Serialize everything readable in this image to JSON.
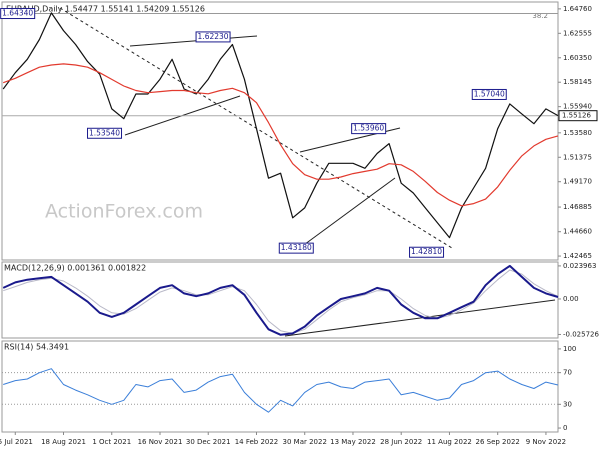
{
  "watermark": "ActionForex.com",
  "chart_data": [
    {
      "type": "line",
      "title": "EURAUD,Daily  1.54477 1.55141 1.54209 1.55126",
      "x": [
        -1,
        0,
        1,
        2,
        3,
        4,
        5,
        6,
        7,
        8,
        9,
        10,
        11,
        12,
        13,
        14,
        15,
        16,
        17,
        18,
        19,
        20,
        21,
        22,
        23,
        24,
        25,
        26,
        27,
        28,
        29,
        30,
        31,
        32,
        33,
        34,
        35,
        36,
        37,
        38,
        39,
        40,
        41,
        42,
        43,
        44,
        45
      ],
      "xlim": [
        -1.1,
        45
      ],
      "ylim": [
        1.4211,
        1.6538
      ],
      "yticks": [
        {
          "value": 1.6476,
          "label": "1.64760"
        },
        1.62555,
        {
          "value": 1.6035,
          "label": "1.60350"
        },
        1.58145,
        {
          "value": 1.5594,
          "label": "1.55940"
        },
        {
          "value": 1.5358,
          "label": "1.53580"
        },
        1.51375,
        {
          "value": 1.4917,
          "label": "1.49170"
        },
        1.46885,
        {
          "value": 1.4466,
          "label": "1.44660"
        },
        1.42465
      ],
      "series": [
        {
          "color": "#111111",
          "values": [
            1.5753,
            1.59,
            1.6021,
            1.62,
            1.644,
            1.628,
            1.6155,
            1.6,
            1.5887,
            1.5574,
            1.5485,
            1.5708,
            1.5708,
            1.5842,
            1.6021,
            1.5753,
            1.5708,
            1.5842,
            1.6021,
            1.6155,
            1.5842,
            1.5395,
            1.4949,
            1.4994,
            1.4592,
            1.4681,
            1.4904,
            1.5083,
            1.5083,
            1.5083,
            1.5038,
            1.5172,
            1.5261,
            1.4904,
            1.4815,
            1.4681,
            1.4547,
            1.4413,
            1.4681,
            1.486,
            1.5038,
            1.5395,
            1.5619,
            1.5529,
            1.544,
            1.5574,
            1.5513
          ]
        },
        {
          "color": "#e23a2e",
          "values": [
            1.581,
            1.585,
            1.59,
            1.595,
            1.597,
            1.598,
            1.597,
            1.595,
            1.59,
            1.584,
            1.578,
            1.574,
            1.572,
            1.573,
            1.574,
            1.574,
            1.572,
            1.571,
            1.574,
            1.576,
            1.572,
            1.563,
            1.545,
            1.525,
            1.508,
            1.498,
            1.494,
            1.494,
            1.496,
            1.499,
            1.501,
            1.503,
            1.508,
            1.507,
            1.501,
            1.492,
            1.482,
            1.475,
            1.47,
            1.472,
            1.476,
            1.487,
            1.502,
            1.515,
            1.524,
            1.53,
            1.533
          ]
        }
      ],
      "annotations": [
        {
          "label": "1.64340",
          "x": 0.2,
          "value": 1.6434
        },
        {
          "label": "1.62230",
          "x": 16.4,
          "value": 1.6223
        },
        {
          "label": "1.53540",
          "x": 7.4,
          "value": 1.5354
        },
        {
          "label": "1.53960",
          "x": 29.3,
          "value": 1.5396
        },
        {
          "label": "1.43180",
          "x": 23.3,
          "value": 1.4318
        },
        {
          "label": "1.42810",
          "x": 34.1,
          "value": 1.4281
        },
        {
          "label": "1.57040",
          "x": 39.3,
          "value": 1.5704
        }
      ],
      "hlines": [
        1.6434
      ],
      "fib_label": "38.2",
      "last_price": 1.55126
    },
    {
      "type": "line",
      "title": "MACD(12,26,9) 0.001361 0.001822",
      "x": [
        -1,
        0,
        1,
        2,
        3,
        4,
        5,
        6,
        7,
        8,
        9,
        10,
        11,
        12,
        13,
        14,
        15,
        16,
        17,
        18,
        19,
        20,
        21,
        22,
        23,
        24,
        25,
        26,
        27,
        28,
        29,
        30,
        31,
        32,
        33,
        34,
        35,
        36,
        37,
        38,
        39,
        40,
        41,
        42,
        43,
        44,
        45
      ],
      "xlim": [
        -1.1,
        45
      ],
      "ylim": [
        -0.0283,
        0.0268
      ],
      "yticks": [
        0.023963,
        {
          "value": 0,
          "label": "0.00"
        },
        -0.025726
      ],
      "series": [
        {
          "color": "#b9b9c8",
          "width": 1,
          "values": [
            0.006,
            0.009,
            0.012,
            0.014,
            0.015,
            0.013,
            0.008,
            0.002,
            -0.005,
            -0.01,
            -0.011,
            -0.007,
            -0.001,
            0.005,
            0.008,
            0.006,
            0.003,
            0.003,
            0.006,
            0.009,
            0.006,
            -0.004,
            -0.016,
            -0.023,
            -0.025,
            -0.022,
            -0.015,
            -0.008,
            -0.002,
            0.001,
            0.003,
            0.006,
            0.006,
            0.0,
            -0.007,
            -0.012,
            -0.014,
            -0.012,
            -0.008,
            -0.003,
            0.006,
            0.014,
            0.021,
            0.018,
            0.011,
            0.006,
            0.0018
          ]
        },
        {
          "color": "#1a1a8c",
          "width": 2,
          "values": [
            0.008,
            0.012,
            0.014,
            0.015,
            0.016,
            0.01,
            0.004,
            -0.002,
            -0.01,
            -0.013,
            -0.01,
            -0.004,
            0.002,
            0.008,
            0.01,
            0.004,
            0.002,
            0.004,
            0.008,
            0.01,
            0.003,
            -0.01,
            -0.022,
            -0.026,
            -0.025,
            -0.02,
            -0.012,
            -0.006,
            0.0,
            0.002,
            0.004,
            0.008,
            0.006,
            -0.004,
            -0.01,
            -0.014,
            -0.014,
            -0.01,
            -0.006,
            -0.002,
            0.01,
            0.018,
            0.024,
            0.016,
            0.008,
            0.004,
            0.0014
          ]
        }
      ]
    },
    {
      "type": "line",
      "title": "RSI(14) 54.3491",
      "x": [
        -1,
        0,
        1,
        2,
        3,
        4,
        5,
        6,
        7,
        8,
        9,
        10,
        11,
        12,
        13,
        14,
        15,
        16,
        17,
        18,
        19,
        20,
        21,
        22,
        23,
        24,
        25,
        26,
        27,
        28,
        29,
        30,
        31,
        32,
        33,
        34,
        35,
        36,
        37,
        38,
        39,
        40,
        41,
        42,
        43,
        44,
        45
      ],
      "xlim": [
        -1.1,
        45
      ],
      "ylim": [
        -5,
        110
      ],
      "yticks": [
        100,
        70,
        30,
        0
      ],
      "reference_lines": [
        70,
        30
      ],
      "xticks": [
        {
          "value": 0,
          "label": "5 Jul 2021"
        },
        {
          "value": 4,
          "label": "18 Aug 2021"
        },
        {
          "value": 8,
          "label": "1 Oct 2021"
        },
        {
          "value": 12,
          "label": "16 Nov 2021"
        },
        {
          "value": 16,
          "label": "30 Dec 2021"
        },
        {
          "value": 20,
          "label": "14 Feb 2022"
        },
        {
          "value": 24,
          "label": "30 Mar 2022"
        },
        {
          "value": 28,
          "label": "13 May 2022"
        },
        {
          "value": 32,
          "label": "28 Jun 2022"
        },
        {
          "value": 36,
          "label": "11 Aug 2022"
        },
        {
          "value": 40,
          "label": "26 Sep 2022"
        },
        {
          "value": 44,
          "label": "9 Nov 2022"
        }
      ],
      "series": [
        {
          "color": "#3b7fd9",
          "width": 1,
          "values": [
            55,
            60,
            62,
            70,
            75,
            55,
            48,
            42,
            35,
            30,
            35,
            55,
            52,
            60,
            62,
            45,
            48,
            58,
            65,
            68,
            45,
            30,
            20,
            35,
            28,
            45,
            55,
            58,
            52,
            50,
            58,
            60,
            62,
            42,
            45,
            40,
            35,
            38,
            55,
            60,
            70,
            72,
            62,
            55,
            50,
            58,
            54.3491
          ]
        }
      ]
    }
  ]
}
